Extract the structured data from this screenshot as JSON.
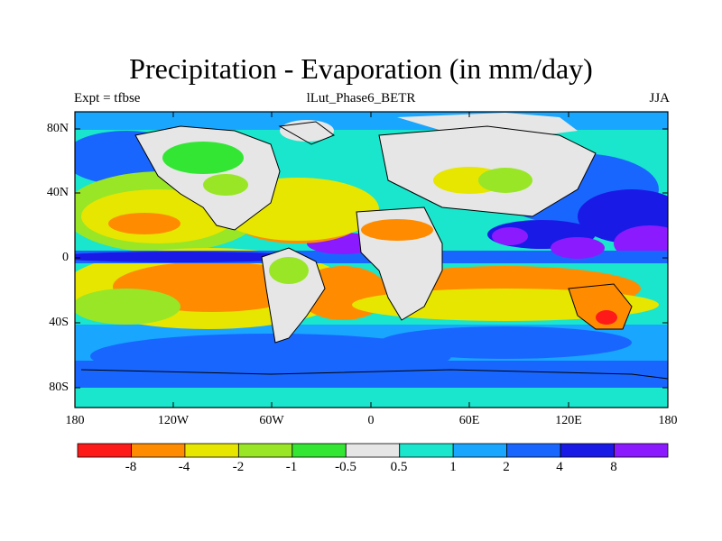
{
  "title": "Precipitation - Evaporation (in mm/day)",
  "left_label": "Expt = tfbse",
  "center_label": "lLut_Phase6_BETR",
  "right_label": "JJA",
  "lat_labels": [
    "80N",
    "40N",
    "0",
    "40S",
    "80S"
  ],
  "lon_labels": [
    "180",
    "120W",
    "60W",
    "0",
    "60E",
    "120E",
    "180"
  ],
  "colorbar": {
    "levels": [
      "-8",
      "-4",
      "-2",
      "-1",
      "-0.5",
      "0.5",
      "1",
      "2",
      "4",
      "8"
    ],
    "colors": [
      "#ff1a1a",
      "#ff8c00",
      "#e6e600",
      "#99e626",
      "#33e633",
      "#e6e6e6",
      "#19e6cc",
      "#19a6ff",
      "#1966ff",
      "#1a1ae6",
      "#8c1aff"
    ]
  },
  "color_keys": {
    "neg8": "#ff1a1a",
    "neg4": "#ff8c00",
    "neg2": "#e6e600",
    "neg1": "#99e626",
    "neg05": "#33e633",
    "zero": "#e6e6e6",
    "p05": "#19e6cc",
    "p1": "#19a6ff",
    "p2": "#1966ff",
    "p4": "#1a1ae6",
    "p8": "#8c1aff"
  },
  "coastline_color": "#000000"
}
